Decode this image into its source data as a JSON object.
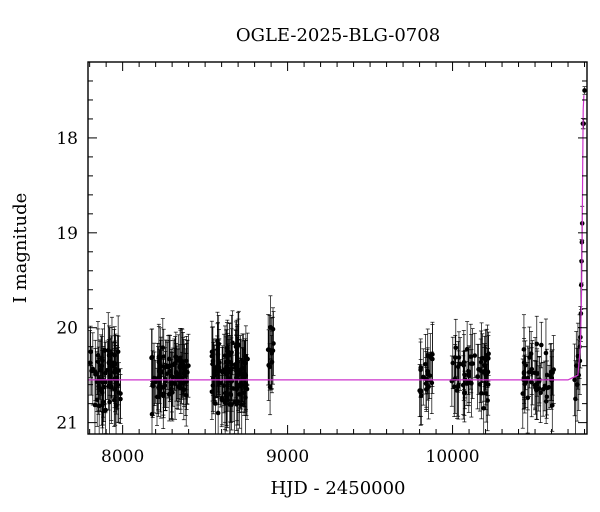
{
  "chart_data": {
    "type": "scatter",
    "title": "OGLE-2025-BLG-0708",
    "xlabel": "HJD - 2450000",
    "ylabel": "I magnitude",
    "xlim": [
      7790,
      10815
    ],
    "ylim": [
      21.12,
      17.2
    ],
    "y_inverted": true,
    "x_ticks": [
      8000,
      9000,
      10000
    ],
    "y_ticks": [
      18,
      19,
      20,
      21
    ],
    "x_tick_labels": [
      "8000",
      "9000",
      "10000"
    ],
    "y_tick_labels": [
      "18",
      "19",
      "20",
      "21"
    ],
    "grid": false,
    "colors": {
      "points": "#000000",
      "model": "#cc33cc",
      "frame": "#000000"
    },
    "seasons": [
      {
        "x_start": 7800,
        "x_end": 7990,
        "n": 70,
        "mag_center": 20.5,
        "scatter": 0.28,
        "err": 0.32
      },
      {
        "x_start": 8170,
        "x_end": 8400,
        "n": 80,
        "mag_center": 20.5,
        "scatter": 0.25,
        "err": 0.3
      },
      {
        "x_start": 8540,
        "x_end": 8760,
        "n": 110,
        "mag_center": 20.5,
        "scatter": 0.28,
        "err": 0.32
      },
      {
        "x_start": 8880,
        "x_end": 8920,
        "n": 12,
        "mag_center": 20.3,
        "scatter": 0.25,
        "err": 0.3
      },
      {
        "x_start": 9800,
        "x_end": 9880,
        "n": 20,
        "mag_center": 20.5,
        "scatter": 0.25,
        "err": 0.3
      },
      {
        "x_start": 9990,
        "x_end": 10220,
        "n": 55,
        "mag_center": 20.5,
        "scatter": 0.25,
        "err": 0.3
      },
      {
        "x_start": 10420,
        "x_end": 10620,
        "n": 45,
        "mag_center": 20.5,
        "scatter": 0.25,
        "err": 0.3
      }
    ],
    "rise_points": [
      {
        "x": 10740,
        "y": 20.55
      },
      {
        "x": 10745,
        "y": 20.75
      },
      {
        "x": 10750,
        "y": 20.4
      },
      {
        "x": 10755,
        "y": 20.6
      },
      {
        "x": 10760,
        "y": 20.3
      },
      {
        "x": 10765,
        "y": 20.5
      },
      {
        "x": 10770,
        "y": 20.2
      },
      {
        "x": 10772,
        "y": 20.35
      },
      {
        "x": 10775,
        "y": 20.1
      },
      {
        "x": 10778,
        "y": 19.85
      },
      {
        "x": 10780,
        "y": 19.55
      },
      {
        "x": 10782,
        "y": 19.3
      },
      {
        "x": 10784,
        "y": 19.1
      },
      {
        "x": 10786,
        "y": 18.9
      },
      {
        "x": 10790,
        "y": 17.85
      },
      {
        "x": 10795,
        "y": 17.85
      },
      {
        "x": 10800,
        "y": 17.5
      }
    ],
    "model": {
      "baseline": 20.55,
      "rise": [
        {
          "x": 10700,
          "y": 20.55
        },
        {
          "x": 10760,
          "y": 20.5
        },
        {
          "x": 10775,
          "y": 20.2
        },
        {
          "x": 10782,
          "y": 19.6
        },
        {
          "x": 10786,
          "y": 19.0
        },
        {
          "x": 10789,
          "y": 18.3
        },
        {
          "x": 10792,
          "y": 17.7
        },
        {
          "x": 10796,
          "y": 17.55
        }
      ]
    }
  }
}
